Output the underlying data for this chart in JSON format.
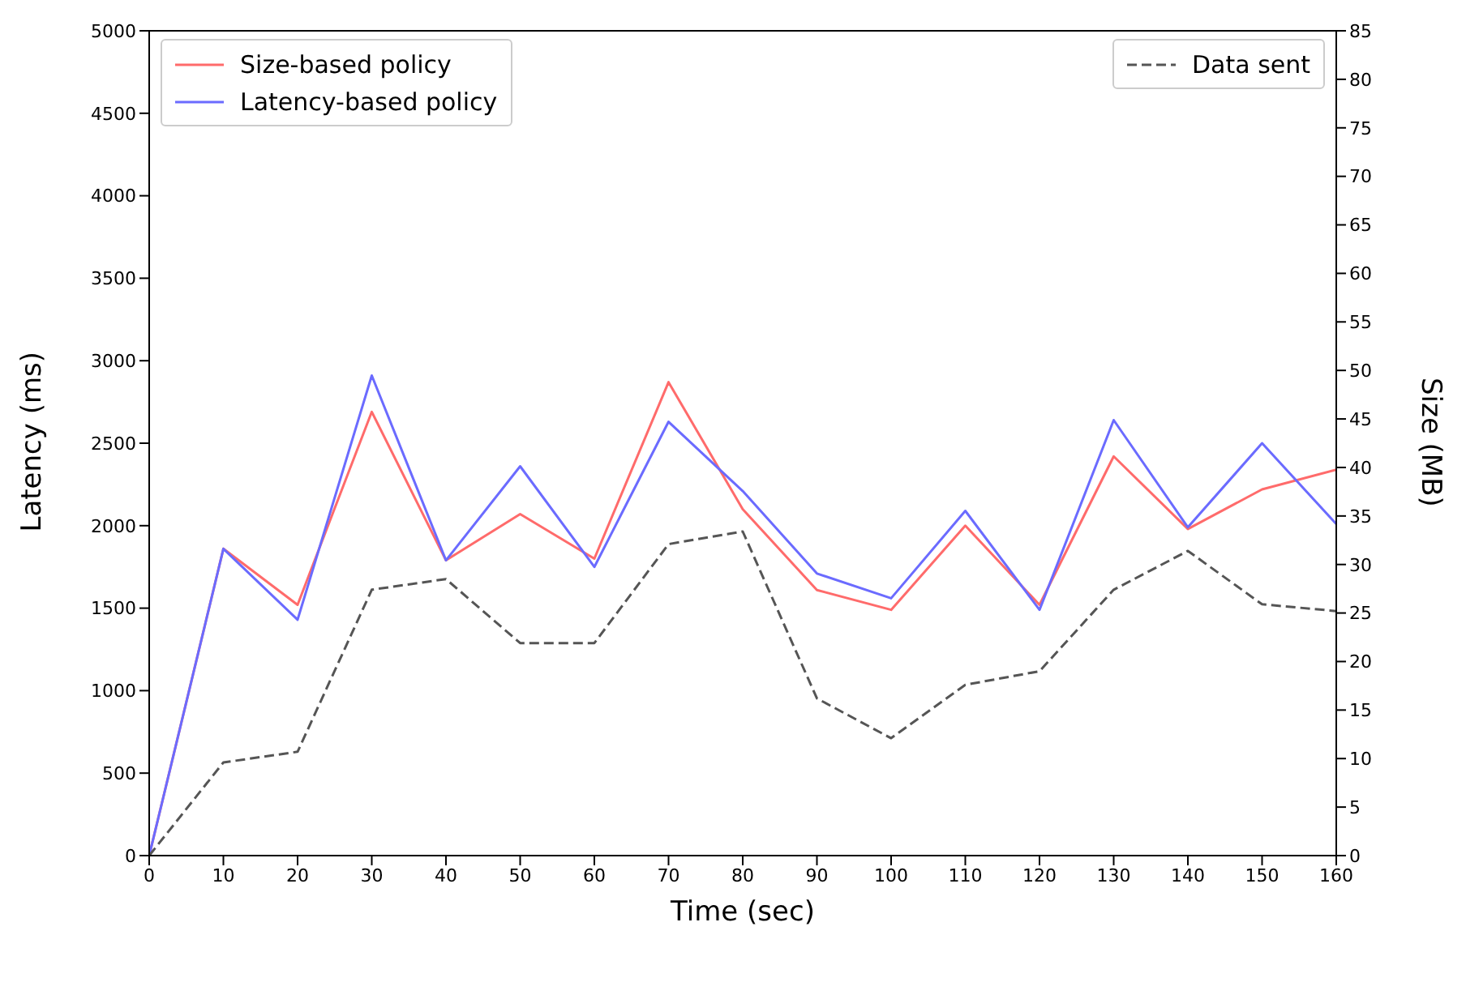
{
  "chart_data": {
    "type": "line",
    "xlabel": "Time (sec)",
    "ylabel": "Latency (ms)",
    "y2label": "Size (MB)",
    "x": [
      0,
      10,
      20,
      30,
      40,
      50,
      60,
      70,
      80,
      90,
      100,
      110,
      120,
      130,
      140,
      150,
      160
    ],
    "series": [
      {
        "name": "Size-based policy",
        "color": "#ff6b6b",
        "values": [
          0,
          1860,
          1520,
          2690,
          1790,
          2070,
          1800,
          2870,
          2100,
          1610,
          1490,
          2000,
          1520,
          2420,
          1980,
          2220,
          2340
        ]
      },
      {
        "name": "Latency-based policy",
        "color": "#6b6bff",
        "values": [
          0,
          1860,
          1430,
          2910,
          1790,
          2360,
          1750,
          2630,
          2210,
          1710,
          1560,
          2090,
          1490,
          2640,
          1990,
          2500,
          2010
        ]
      },
      {
        "name": "Data sent",
        "color": "#555555",
        "axis": "y2",
        "line_style": "dashed",
        "values": [
          0,
          9.6,
          10.7,
          27.4,
          28.5,
          21.9,
          21.9,
          32.1,
          33.4,
          16.2,
          12.1,
          17.6,
          19.0,
          27.4,
          31.4,
          25.9,
          25.2
        ]
      }
    ],
    "xlim": [
      0,
      160
    ],
    "xticks": [
      0,
      10,
      20,
      30,
      40,
      50,
      60,
      70,
      80,
      90,
      100,
      110,
      120,
      130,
      140,
      150,
      160
    ],
    "ylim": [
      0,
      5000
    ],
    "yticks": [
      0,
      500,
      1000,
      1500,
      2000,
      2500,
      3000,
      3500,
      4000,
      4500,
      5000
    ],
    "y2lim": [
      0,
      85
    ],
    "y2ticks": [
      0,
      5,
      10,
      15,
      20,
      25,
      30,
      35,
      40,
      45,
      50,
      55,
      60,
      65,
      70,
      75,
      80,
      85
    ],
    "grid": false,
    "legend": "top",
    "marker": "none",
    "line_style": "solid"
  }
}
